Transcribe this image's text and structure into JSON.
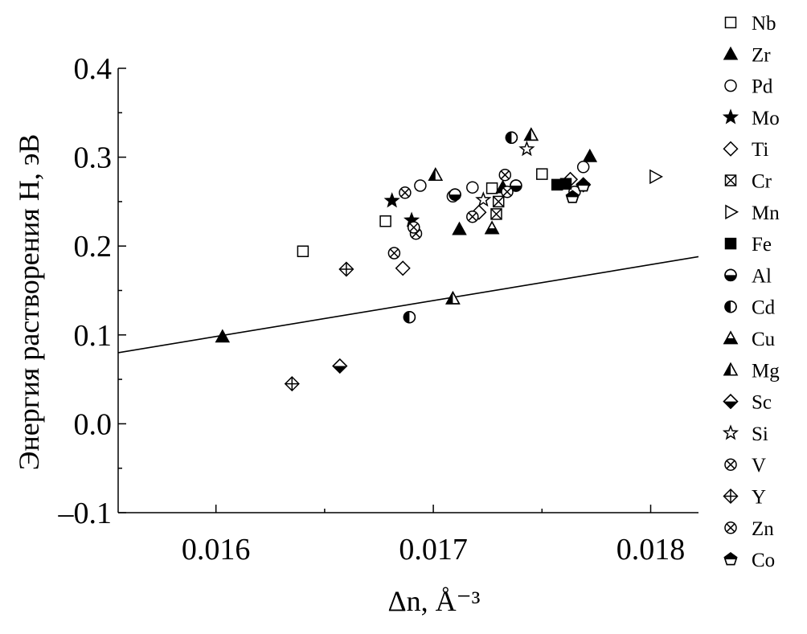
{
  "chart_data": {
    "type": "scatter",
    "ylabel": "Энергия растворения H, эВ",
    "xlabel": "Δn, Å⁻³",
    "xlim": [
      0.01555,
      0.01822
    ],
    "ylim": [
      -0.1,
      0.4
    ],
    "x_ticks": [
      {
        "value": 0.016,
        "label": "0.016"
      },
      {
        "value": 0.017,
        "label": "0.017"
      },
      {
        "value": 0.018,
        "label": "0.018"
      }
    ],
    "y_ticks": [
      {
        "value": -0.1,
        "label": "–0.1"
      },
      {
        "value": 0.0,
        "label": "0.0"
      },
      {
        "value": 0.1,
        "label": "0.1"
      },
      {
        "value": 0.2,
        "label": "0.2"
      },
      {
        "value": 0.3,
        "label": "0.3"
      },
      {
        "value": 0.4,
        "label": "0.4"
      }
    ],
    "grid": false,
    "legend_position": "right",
    "trend_line": {
      "x": [
        0.01555,
        0.01822
      ],
      "y": [
        0.08,
        0.188
      ]
    },
    "series": [
      {
        "name": "Nb",
        "marker": "square-open",
        "points": [
          [
            0.0164,
            0.194
          ],
          [
            0.01678,
            0.228
          ],
          [
            0.01727,
            0.265
          ],
          [
            0.0175,
            0.281
          ]
        ]
      },
      {
        "name": "Zr",
        "marker": "triangle-filled",
        "points": [
          [
            0.01603,
            0.098
          ],
          [
            0.01712,
            0.219
          ],
          [
            0.01732,
            0.266
          ],
          [
            0.01772,
            0.301
          ]
        ]
      },
      {
        "name": "Pd",
        "marker": "circle-open",
        "points": [
          [
            0.01694,
            0.268
          ],
          [
            0.01709,
            0.256
          ],
          [
            0.01718,
            0.266
          ],
          [
            0.01765,
            0.261
          ],
          [
            0.01769,
            0.289
          ]
        ]
      },
      {
        "name": "Mo",
        "marker": "star-filled",
        "points": [
          [
            0.01681,
            0.251
          ],
          [
            0.0169,
            0.229
          ]
        ]
      },
      {
        "name": "Ti",
        "marker": "diamond-open",
        "points": [
          [
            0.01686,
            0.175
          ],
          [
            0.01721,
            0.238
          ],
          [
            0.01763,
            0.275
          ]
        ]
      },
      {
        "name": "Cr",
        "marker": "square-cross",
        "points": [
          [
            0.01729,
            0.236
          ],
          [
            0.0173,
            0.25
          ]
        ]
      },
      {
        "name": "Mn",
        "marker": "triangle-right-open",
        "points": [
          [
            0.01802,
            0.278
          ]
        ]
      },
      {
        "name": "Fe",
        "marker": "square-filled",
        "points": [
          [
            0.01757,
            0.269
          ],
          [
            0.01761,
            0.27
          ]
        ]
      },
      {
        "name": "Al",
        "marker": "circle-bottom-half",
        "points": [
          [
            0.0171,
            0.258
          ],
          [
            0.01738,
            0.268
          ]
        ]
      },
      {
        "name": "Cd",
        "marker": "circle-left-half",
        "points": [
          [
            0.01689,
            0.12
          ],
          [
            0.01736,
            0.322
          ]
        ]
      },
      {
        "name": "Cu",
        "marker": "triangle-bottom-half",
        "points": [
          [
            0.01727,
            0.22
          ]
        ]
      },
      {
        "name": "Mg",
        "marker": "triangle-left-half",
        "points": [
          [
            0.01709,
            0.141
          ],
          [
            0.01701,
            0.28
          ],
          [
            0.01745,
            0.325
          ]
        ]
      },
      {
        "name": "Sc",
        "marker": "diamond-bottom-half",
        "points": [
          [
            0.01657,
            0.065
          ],
          [
            0.01769,
            0.269
          ]
        ]
      },
      {
        "name": "Si",
        "marker": "star-open",
        "points": [
          [
            0.01723,
            0.252
          ],
          [
            0.01743,
            0.309
          ]
        ]
      },
      {
        "name": "V",
        "marker": "circle-cross",
        "points": [
          [
            0.01682,
            0.192
          ],
          [
            0.01687,
            0.26
          ],
          [
            0.01692,
            0.214
          ],
          [
            0.01718,
            0.233
          ],
          [
            0.01733,
            0.28
          ]
        ]
      },
      {
        "name": "Y",
        "marker": "diamond-plus",
        "points": [
          [
            0.01635,
            0.045
          ],
          [
            0.0166,
            0.174
          ]
        ]
      },
      {
        "name": "Zn",
        "marker": "circle-cross",
        "points": [
          [
            0.01691,
            0.221
          ],
          [
            0.01734,
            0.261
          ]
        ]
      },
      {
        "name": "Co",
        "marker": "pentagon-top-half",
        "points": [
          [
            0.01764,
            0.255
          ],
          [
            0.01769,
            0.268
          ]
        ]
      }
    ]
  }
}
